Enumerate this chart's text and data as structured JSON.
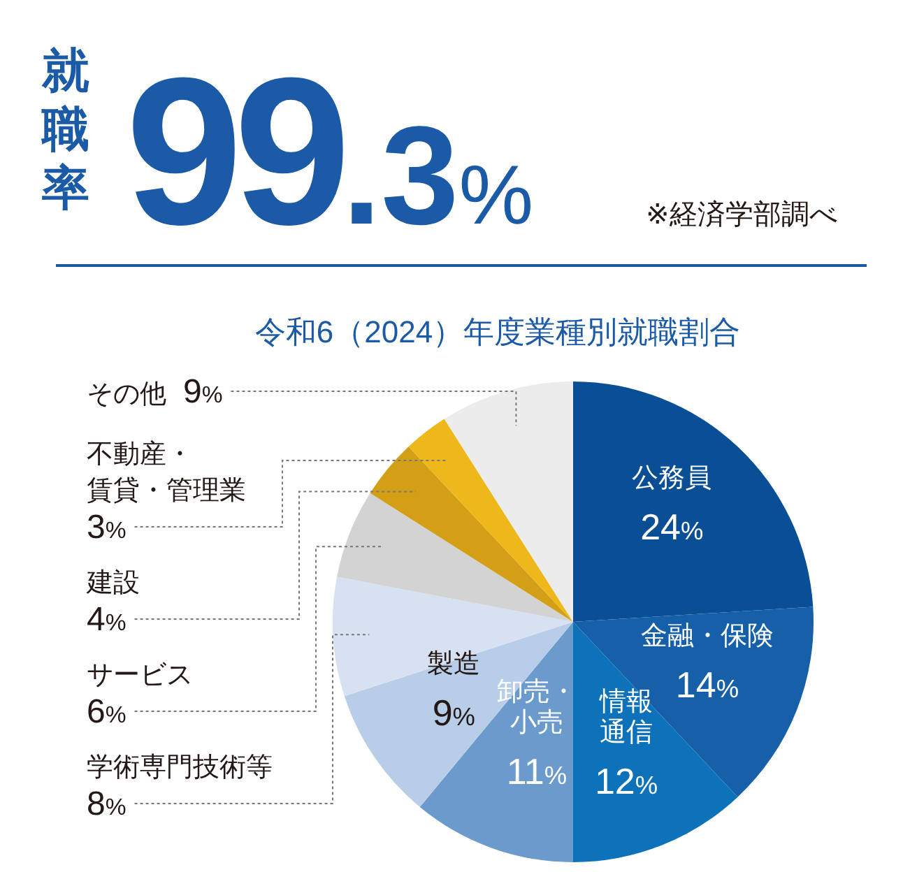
{
  "chart_data": {
    "type": "pie",
    "title": "令和6（2024）年度業種別就職割合",
    "annotations": [
      "就職率",
      "99.3%",
      "※経済学部調べ"
    ],
    "categories": [
      "公務員",
      "金融・保険",
      "情報通信",
      "卸売・小売",
      "製造",
      "学術専門技術等",
      "サービス",
      "建設",
      "不動産・賃貸・管理業",
      "その他"
    ],
    "values": [
      24,
      14,
      12,
      11,
      9,
      8,
      6,
      4,
      3,
      9
    ],
    "colors": [
      "#0a4f96",
      "#1660a9",
      "#0d72b9",
      "#6a9bcc",
      "#b8cde7",
      "#d7e1f1",
      "#d3d3d3",
      "#d29f16",
      "#eeb81b",
      "#ececec"
    ],
    "value_labels": [
      "24%",
      "14%",
      "12%",
      "11%",
      "9%",
      "8%",
      "6%",
      "4%",
      "3%",
      "9%"
    ]
  }
}
